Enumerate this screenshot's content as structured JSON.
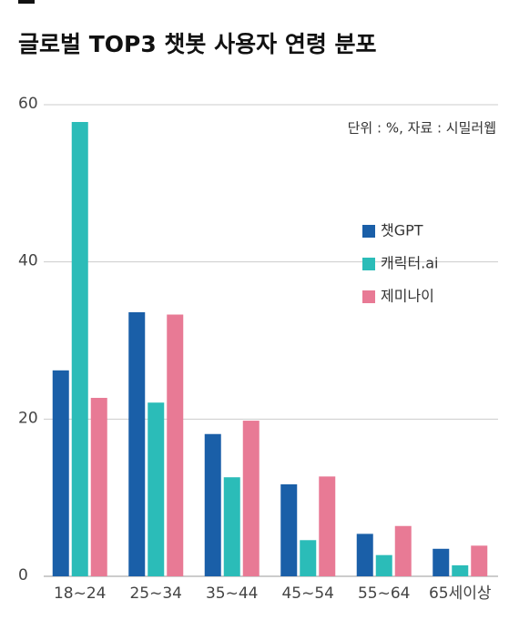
{
  "chart_data": {
    "type": "bar",
    "title": "글로벌 TOP3 챗봇 사용자 연령 분포",
    "note": "단위 : %, 자료 : 시밀러웹",
    "categories": [
      "18~24",
      "25~34",
      "35~44",
      "45~54",
      "55~64",
      "65세이상"
    ],
    "series": [
      {
        "name": "챗GPT",
        "color": "#1a5fa8",
        "values": [
          26.2,
          33.6,
          18.1,
          11.7,
          5.4,
          3.5
        ]
      },
      {
        "name": "캐릭터.ai",
        "color": "#2bbcb8",
        "values": [
          57.8,
          22.1,
          12.6,
          4.6,
          2.7,
          1.4
        ]
      },
      {
        "name": "제미나이",
        "color": "#e87a95",
        "values": [
          22.7,
          33.3,
          19.8,
          12.7,
          6.4,
          3.9
        ]
      }
    ],
    "ylim": [
      0,
      60
    ],
    "yticks": [
      0,
      20,
      40,
      60
    ],
    "grid": true
  }
}
